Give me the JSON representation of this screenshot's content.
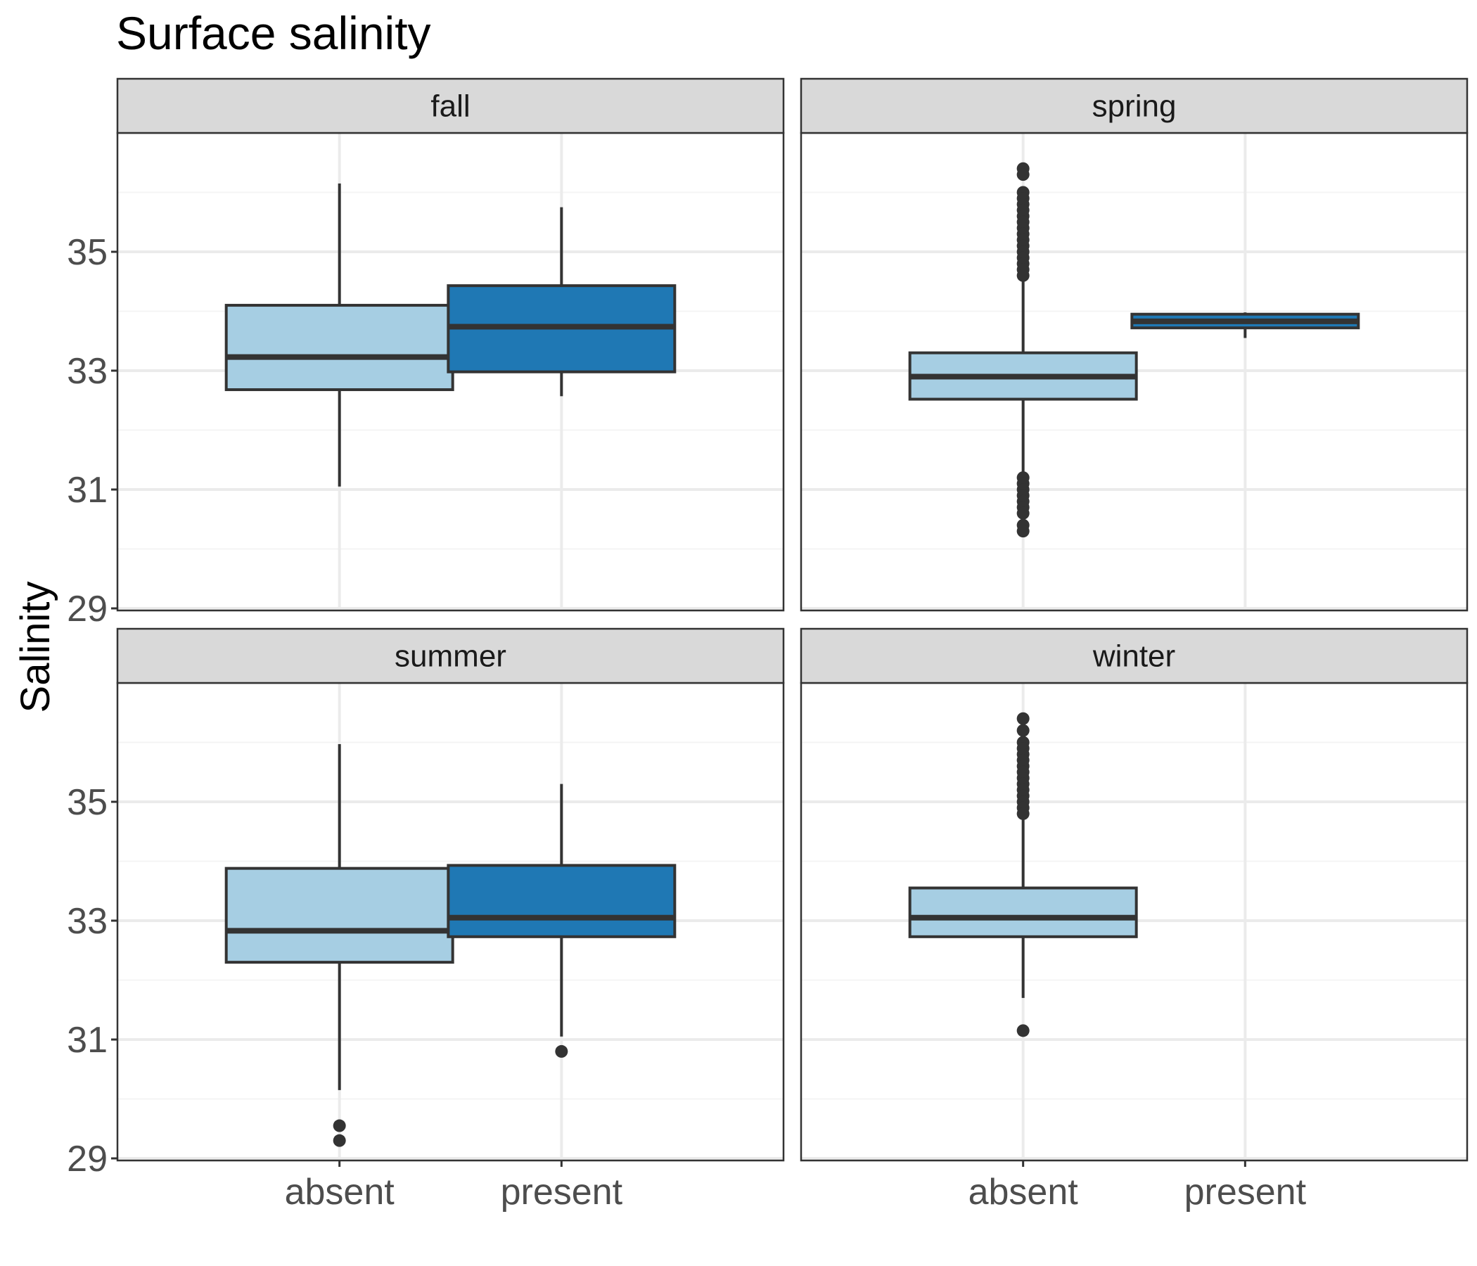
{
  "chart_data": {
    "type": "box",
    "title": "Surface salinity",
    "xlabel": "",
    "ylabel": "Salinity",
    "ylim": [
      29,
      37
    ],
    "y_ticks": [
      29,
      31,
      33,
      35
    ],
    "categories": [
      "absent",
      "present"
    ],
    "facet_layout": "2x2 grid, shared axes",
    "grid": true,
    "legend": "none",
    "colors": {
      "absent": "#a6cee3",
      "present": "#1f78b4",
      "outline": "#333333",
      "strip_fill": "#d9d9d9",
      "grid_major": "#ebebeb",
      "grid_minor": "#f4f4f4"
    },
    "panels": [
      {
        "facet": "fall",
        "boxes": [
          {
            "category": "absent",
            "whisker_low": 31.05,
            "q1": 32.68,
            "median": 33.23,
            "q3": 34.1,
            "whisker_high": 36.15,
            "outliers": []
          },
          {
            "category": "present",
            "whisker_low": 32.57,
            "q1": 32.98,
            "median": 33.74,
            "q3": 34.43,
            "whisker_high": 35.75,
            "outliers": []
          }
        ]
      },
      {
        "facet": "spring",
        "boxes": [
          {
            "category": "absent",
            "whisker_low": 31.3,
            "q1": 32.52,
            "median": 32.9,
            "q3": 33.3,
            "whisker_high": 34.5,
            "outliers": [
              36.4,
              36.3,
              36.0,
              35.9,
              35.8,
              35.7,
              35.6,
              35.5,
              35.4,
              35.3,
              35.2,
              35.1,
              35.0,
              34.9,
              34.8,
              34.7,
              34.6,
              31.2,
              31.1,
              31.0,
              30.9,
              30.8,
              30.7,
              30.6,
              30.4,
              30.3
            ]
          },
          {
            "category": "present",
            "whisker_low": 33.55,
            "q1": 33.72,
            "median": 33.83,
            "q3": 33.95,
            "whisker_high": 33.98,
            "outliers": []
          }
        ]
      },
      {
        "facet": "summer",
        "boxes": [
          {
            "category": "absent",
            "whisker_low": 30.15,
            "q1": 32.3,
            "median": 32.83,
            "q3": 33.88,
            "whisker_high": 35.97,
            "outliers": [
              29.55,
              29.3
            ]
          },
          {
            "category": "present",
            "whisker_low": 31.05,
            "q1": 32.73,
            "median": 33.05,
            "q3": 33.93,
            "whisker_high": 35.3,
            "outliers": [
              30.8
            ]
          }
        ]
      },
      {
        "facet": "winter",
        "boxes": [
          {
            "category": "absent",
            "whisker_low": 31.7,
            "q1": 32.73,
            "median": 33.05,
            "q3": 33.55,
            "whisker_high": 34.75,
            "outliers": [
              36.4,
              36.2,
              36.0,
              35.9,
              35.8,
              35.7,
              35.6,
              35.5,
              35.4,
              35.3,
              35.2,
              35.1,
              35.0,
              34.9,
              34.8,
              31.15
            ]
          }
        ]
      }
    ]
  }
}
